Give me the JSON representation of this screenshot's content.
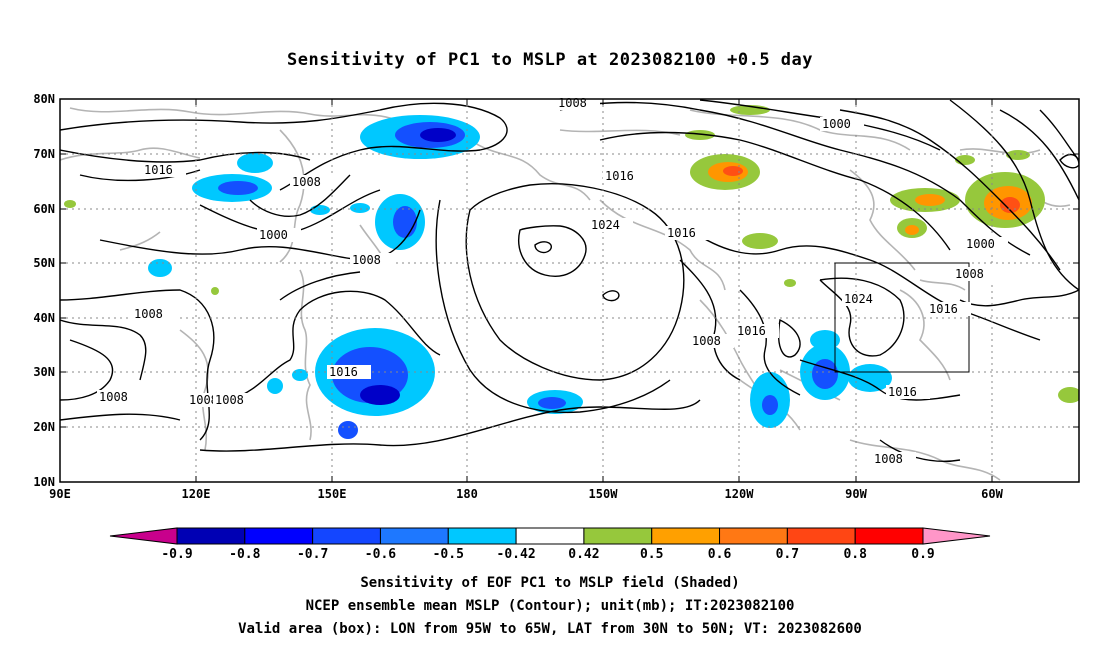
{
  "title": "Sensitivity of PC1 to MSLP at 2023082100 +0.5 day",
  "map": {
    "lon_range": [
      "90E",
      "50W"
    ],
    "lat_range": [
      "10N",
      "80N"
    ],
    "x_ticks": [
      "90E",
      "120E",
      "150E",
      "180",
      "150W",
      "120W",
      "90W",
      "60W"
    ],
    "y_ticks": [
      "80N",
      "70N",
      "60N",
      "50N",
      "40N",
      "30N",
      "20N",
      "10N"
    ],
    "valid_box": {
      "lon_west": "95W",
      "lon_east": "65W",
      "lat_south": "30N",
      "lat_north": "50N"
    },
    "contour_labels": [
      "1008",
      "1000",
      "1016",
      "1008",
      "1000",
      "1008",
      "1008",
      "1016",
      "1008",
      "1008",
      "1008",
      "1024",
      "1016",
      "1016",
      "1008",
      "1016",
      "1000",
      "1008",
      "1024",
      "1016",
      "1016",
      "1008"
    ],
    "colors": {
      "neg_strong": "#0000c8",
      "neg_mid": "#1450ff",
      "neg_light": "#00c8ff",
      "pos_light": "#96c83c",
      "pos_mid": "#ff9600",
      "pos_strong": "#ff5014",
      "coast": "#b4b4b4",
      "contour": "#000000"
    }
  },
  "colorbar": {
    "labels": [
      "-0.9",
      "-0.8",
      "-0.7",
      "-0.6",
      "-0.5",
      "-0.42",
      "0.42",
      "0.5",
      "0.6",
      "0.7",
      "0.8",
      "0.9"
    ],
    "colors": [
      "#c8008c",
      "#0000b4",
      "#0000ff",
      "#1446ff",
      "#1e78ff",
      "#00c8ff",
      "#ffffff",
      "#96c83c",
      "#ffa000",
      "#ff7814",
      "#ff4614",
      "#ff0000",
      "#ff96c8"
    ]
  },
  "captions": [
    "Sensitivity of EOF PC1 to MSLP field (Shaded)",
    "NCEP ensemble mean MSLP (Contour); unit(mb); IT:2023082100",
    "Valid area (box): LON from 95W to 65W, LAT from 30N to 50N; VT: 2023082600"
  ]
}
